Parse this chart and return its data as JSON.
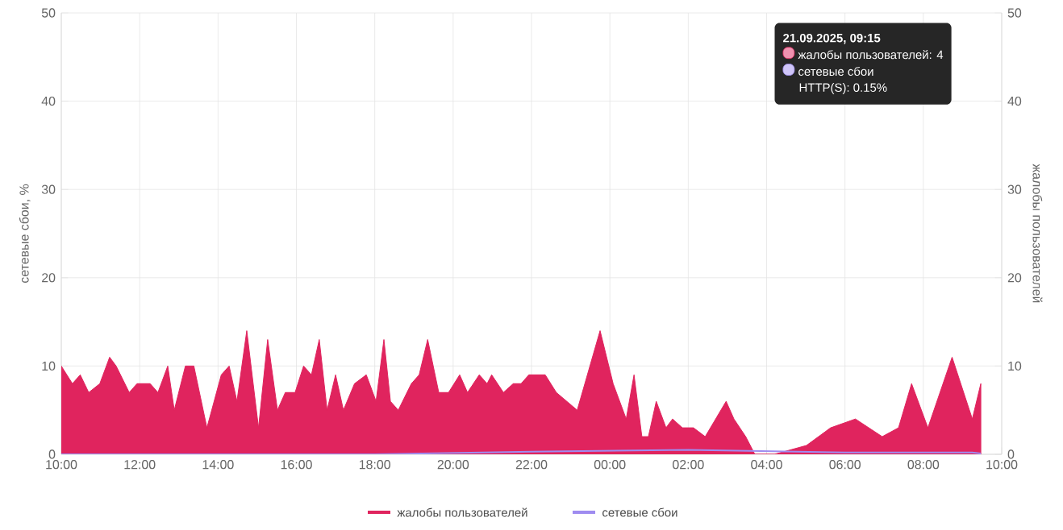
{
  "chart_data": {
    "type": "area",
    "xlim": [
      "2025-09-20T10:00",
      "2025-09-21T10:00"
    ],
    "xticks": [
      {
        "value": "2025-09-20T10:00",
        "label": "10:00"
      },
      {
        "value": "2025-09-20T12:00",
        "label": "12:00"
      },
      {
        "value": "2025-09-20T14:00",
        "label": "14:00"
      },
      {
        "value": "2025-09-20T16:00",
        "label": "16:00"
      },
      {
        "value": "2025-09-20T18:00",
        "label": "18:00"
      },
      {
        "value": "2025-09-20T20:00",
        "label": "20:00"
      },
      {
        "value": "2025-09-20T22:00",
        "label": "22:00"
      },
      {
        "value": "2025-09-21T00:00",
        "label": "00:00"
      },
      {
        "value": "2025-09-21T02:00",
        "label": "02:00"
      },
      {
        "value": "2025-09-21T04:00",
        "label": "04:00"
      },
      {
        "value": "2025-09-21T06:00",
        "label": "06:00"
      },
      {
        "value": "2025-09-21T08:00",
        "label": "08:00"
      },
      {
        "value": "2025-09-21T10:00",
        "label": "10:00"
      }
    ],
    "ylim": [
      0,
      50
    ],
    "yticks": [
      0,
      10,
      20,
      30,
      40,
      50
    ],
    "y2lim": [
      0,
      50
    ],
    "y2ticks": [
      0,
      10,
      20,
      30,
      40,
      50
    ],
    "ylabel": "сетевые сбои, %",
    "y2label": "жалобы пользователей",
    "grid": true,
    "legend": "bottom",
    "annotations": [
      "21.09.2025, 09:15",
      "жалобы пользователей: 4",
      "сетевые сбои",
      "HTTP(S): 0.15%"
    ],
    "series": [
      {
        "name": "жалобы пользователей",
        "axis": "y2",
        "color": "#e0245e",
        "x": [
          "2025-09-20T10:00",
          "2025-09-20T10:17",
          "2025-09-20T10:29",
          "2025-09-20T10:42",
          "2025-09-20T10:59",
          "2025-09-20T11:14",
          "2025-09-20T11:24",
          "2025-09-20T11:44",
          "2025-09-20T11:56",
          "2025-09-20T12:16",
          "2025-09-20T12:28",
          "2025-09-20T12:43",
          "2025-09-20T12:53",
          "2025-09-20T13:10",
          "2025-09-20T13:23",
          "2025-09-20T13:43",
          "2025-09-20T14:05",
          "2025-09-20T14:17",
          "2025-09-20T14:29",
          "2025-09-20T14:44",
          "2025-09-20T15:02",
          "2025-09-20T15:16",
          "2025-09-20T15:31",
          "2025-09-20T15:43",
          "2025-09-20T15:58",
          "2025-09-20T16:11",
          "2025-09-20T16:23",
          "2025-09-20T16:35",
          "2025-09-20T16:47",
          "2025-09-20T17:00",
          "2025-09-20T17:12",
          "2025-09-20T17:29",
          "2025-09-20T17:47",
          "2025-09-20T18:02",
          "2025-09-20T18:14",
          "2025-09-20T18:24",
          "2025-09-20T18:36",
          "2025-09-20T18:56",
          "2025-09-20T19:08",
          "2025-09-20T19:21",
          "2025-09-20T19:38",
          "2025-09-20T19:53",
          "2025-09-20T20:10",
          "2025-09-20T20:22",
          "2025-09-20T20:40",
          "2025-09-20T20:52",
          "2025-09-20T20:59",
          "2025-09-20T21:17",
          "2025-09-20T21:32",
          "2025-09-20T21:44",
          "2025-09-20T21:56",
          "2025-09-20T22:21",
          "2025-09-20T22:38",
          "2025-09-20T23:10",
          "2025-09-20T23:45",
          "2025-09-21T00:05",
          "2025-09-21T00:25",
          "2025-09-21T00:37",
          "2025-09-21T00:49",
          "2025-09-21T00:59",
          "2025-09-21T01:11",
          "2025-09-21T01:26",
          "2025-09-21T01:36",
          "2025-09-21T01:51",
          "2025-09-21T02:08",
          "2025-09-21T02:26",
          "2025-09-21T02:58",
          "2025-09-21T03:10",
          "2025-09-21T03:28",
          "2025-09-21T03:42",
          "2025-09-21T04:12",
          "2025-09-21T05:01",
          "2025-09-21T05:38",
          "2025-09-21T06:16",
          "2025-09-21T06:57",
          "2025-09-21T07:22",
          "2025-09-21T07:42",
          "2025-09-21T08:07",
          "2025-09-21T08:44",
          "2025-09-21T09:15",
          "2025-09-21T09:28"
        ],
        "values": [
          10,
          8,
          9,
          7,
          8,
          11,
          10,
          7,
          8,
          8,
          7,
          10,
          5,
          10,
          10,
          3,
          9,
          10,
          6,
          14,
          3,
          13,
          5,
          7,
          7,
          10,
          9,
          13,
          5,
          9,
          5,
          8,
          9,
          6,
          13,
          6,
          5,
          8,
          9,
          13,
          7,
          7,
          9,
          7,
          9,
          8,
          9,
          7,
          8,
          8,
          9,
          9,
          7,
          5,
          14,
          8,
          4,
          9,
          2,
          2,
          6,
          3,
          4,
          3,
          3,
          2,
          6,
          4,
          2,
          0,
          0,
          1,
          3,
          4,
          2,
          3,
          8,
          3,
          11,
          4,
          8
        ]
      },
      {
        "name": "сетевые сбои",
        "type": "line",
        "axis": "y",
        "color": "#9f8cf0",
        "x": [
          "2025-09-20T10:00",
          "2025-09-20T18:00",
          "2025-09-20T22:00",
          "2025-09-21T02:00",
          "2025-09-21T06:00",
          "2025-09-21T09:15",
          "2025-09-21T09:28"
        ],
        "values": [
          0,
          0,
          0.3,
          0.5,
          0.2,
          0.2,
          0.1
        ]
      }
    ]
  }
}
